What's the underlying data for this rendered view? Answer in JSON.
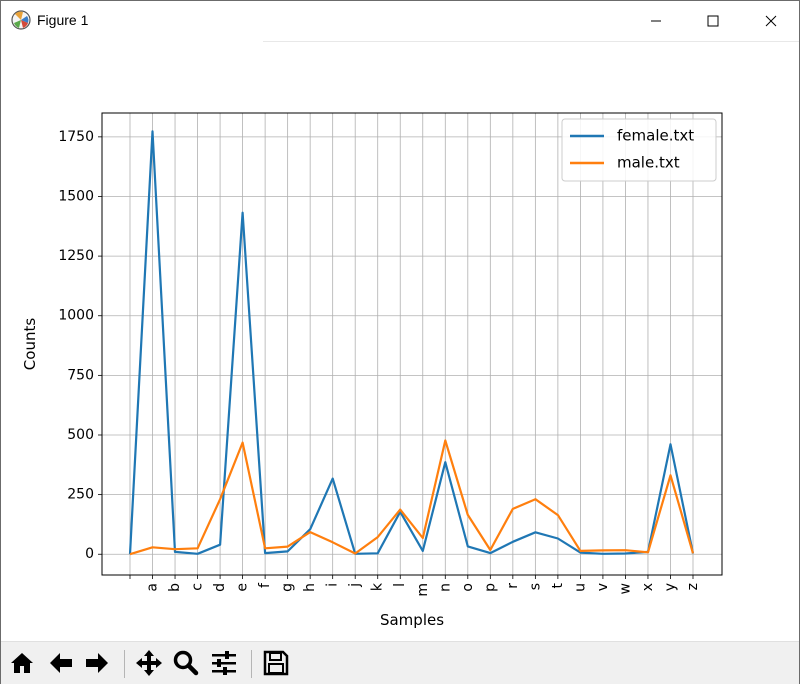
{
  "window": {
    "title": "Figure 1"
  },
  "toolbar": {
    "buttons": [
      {
        "name": "home-button",
        "icon": "home-icon"
      },
      {
        "name": "back-button",
        "icon": "arrow-left-icon"
      },
      {
        "name": "forward-button",
        "icon": "arrow-right-icon"
      },
      {
        "name": "pan-button",
        "icon": "move-icon"
      },
      {
        "name": "zoom-button",
        "icon": "magnifier-icon"
      },
      {
        "name": "configure-subplots-button",
        "icon": "sliders-icon"
      },
      {
        "name": "save-button",
        "icon": "floppy-disk-icon"
      }
    ]
  },
  "chart_data": {
    "type": "line",
    "title": "",
    "xlabel": "Samples",
    "ylabel": "Counts",
    "categories": [
      "",
      "a",
      "b",
      "c",
      "d",
      "e",
      "f",
      "g",
      "h",
      "i",
      "j",
      "k",
      "l",
      "m",
      "n",
      "o",
      "p",
      "r",
      "s",
      "t",
      "u",
      "v",
      "w",
      "x",
      "y",
      "z"
    ],
    "series": [
      {
        "name": "female.txt",
        "color": "#1f77b4",
        "values": [
          0,
          1773,
          10,
          2,
          40,
          1432,
          5,
          12,
          105,
          317,
          2,
          4,
          178,
          14,
          386,
          33,
          5,
          52,
          92,
          66,
          7,
          2,
          3,
          10,
          461,
          3
        ]
      },
      {
        "name": "male.txt",
        "color": "#ff7f0e",
        "values": [
          0,
          29,
          21,
          25,
          231,
          468,
          25,
          32,
          93,
          50,
          3,
          72,
          187,
          68,
          477,
          165,
          18,
          190,
          231,
          164,
          14,
          16,
          17,
          8,
          331,
          4
        ]
      }
    ],
    "ylim": [
      -87,
      1850
    ],
    "yticks": [
      0,
      250,
      500,
      750,
      1000,
      1250,
      1500,
      1750
    ],
    "grid": true,
    "legend": "top-right"
  }
}
